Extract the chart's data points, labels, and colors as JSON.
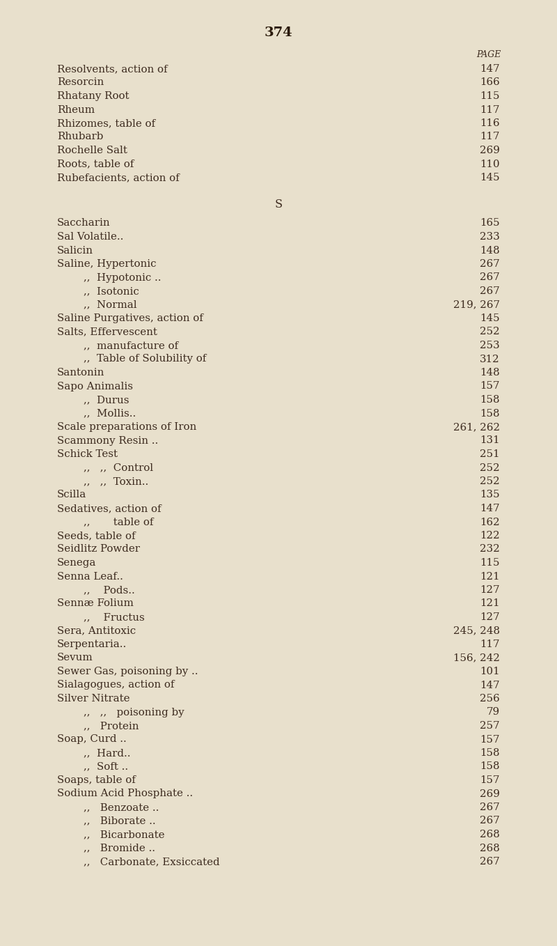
{
  "page_number": "374",
  "background_color": "#e8e0cc",
  "text_color": "#3d2b1f",
  "page_header_color": "#2a1a0a",
  "figsize": [
    8.0,
    13.58
  ],
  "dpi": 100,
  "entries": [
    {
      "indent": 0,
      "text": "Resolvents, action of",
      "page": "147"
    },
    {
      "indent": 0,
      "text": "Resorcin",
      "page": "166"
    },
    {
      "indent": 0,
      "text": "Rhatany Root",
      "page": "115"
    },
    {
      "indent": 0,
      "text": "Rheum",
      "page": "117"
    },
    {
      "indent": 0,
      "text": "Rhizomes, table of",
      "page": "116"
    },
    {
      "indent": 0,
      "text": "Rhubarb",
      "page": "117"
    },
    {
      "indent": 0,
      "text": "Rochelle Salt",
      "page": "269"
    },
    {
      "indent": 0,
      "text": "Roots, table of",
      "page": "110"
    },
    {
      "indent": 0,
      "text": "Rubefacients, action of",
      "page": "145"
    },
    {
      "indent": -1,
      "text": "S",
      "page": ""
    },
    {
      "indent": 0,
      "text": "Saccharin",
      "page": "165"
    },
    {
      "indent": 0,
      "text": "Sal Volatile..",
      "page": "233"
    },
    {
      "indent": 0,
      "text": "Salicin",
      "page": "148"
    },
    {
      "indent": 0,
      "text": "Saline, Hypertonic",
      "page": "267"
    },
    {
      "indent": 1,
      "text": ",,  Hypotonic ..",
      "page": "267"
    },
    {
      "indent": 1,
      "text": ",,  Isotonic",
      "page": "267"
    },
    {
      "indent": 1,
      "text": ",,  Normal",
      "page": "219, 267"
    },
    {
      "indent": 0,
      "text": "Saline Purgatives, action of",
      "page": "145"
    },
    {
      "indent": 0,
      "text": "Salts, Effervescent",
      "page": "252"
    },
    {
      "indent": 1,
      "text": ",,  manufacture of",
      "page": "253"
    },
    {
      "indent": 1,
      "text": ",,  Table of Solubility of",
      "page": "312"
    },
    {
      "indent": 0,
      "text": "Santonin",
      "page": "148"
    },
    {
      "indent": 0,
      "text": "Sapo Animalis",
      "page": "157"
    },
    {
      "indent": 1,
      "text": ",,  Durus",
      "page": "158"
    },
    {
      "indent": 1,
      "text": ",,  Mollis..",
      "page": "158"
    },
    {
      "indent": 0,
      "text": "Scale preparations of Iron",
      "page": "261, 262"
    },
    {
      "indent": 0,
      "text": "Scammony Resin ..",
      "page": "131"
    },
    {
      "indent": 0,
      "text": "Schick Test",
      "page": "251"
    },
    {
      "indent": 1,
      "text": ",,   ,,  Control",
      "page": "252"
    },
    {
      "indent": 1,
      "text": ",,   ,,  Toxin..",
      "page": "252"
    },
    {
      "indent": 0,
      "text": "Scilla",
      "page": "135"
    },
    {
      "indent": 0,
      "text": "Sedatives, action of",
      "page": "147"
    },
    {
      "indent": 1,
      "text": ",,       table of",
      "page": "162"
    },
    {
      "indent": 0,
      "text": "Seeds, table of",
      "page": "122"
    },
    {
      "indent": 0,
      "text": "Seidlitz Powder",
      "page": "232"
    },
    {
      "indent": 0,
      "text": "Senega",
      "page": "115"
    },
    {
      "indent": 0,
      "text": "Senna Leaf..",
      "page": "121"
    },
    {
      "indent": 1,
      "text": ",,    Pods..",
      "page": "127"
    },
    {
      "indent": 0,
      "text": "Sennæ Folium",
      "page": "121"
    },
    {
      "indent": 1,
      "text": ",,    Fructus",
      "page": "127"
    },
    {
      "indent": 0,
      "text": "Sera, Antitoxic",
      "page": "245, 248"
    },
    {
      "indent": 0,
      "text": "Serpentaria..",
      "page": "117"
    },
    {
      "indent": 0,
      "text": "Sevum",
      "page": "156, 242"
    },
    {
      "indent": 0,
      "text": "Sewer Gas, poisoning by ..",
      "page": "101"
    },
    {
      "indent": 0,
      "text": "Sialagogues, action of",
      "page": "147"
    },
    {
      "indent": 0,
      "text": "Silver Nitrate",
      "page": "256"
    },
    {
      "indent": 1,
      "text": ",,   ,,   poisoning by",
      "page": "79"
    },
    {
      "indent": 1,
      "text": ",,   Protein",
      "page": "257"
    },
    {
      "indent": 0,
      "text": "Soap, Curd ..",
      "page": "157"
    },
    {
      "indent": 1,
      "text": ",,  Hard..",
      "page": "158"
    },
    {
      "indent": 1,
      "text": ",,  Soft ..",
      "page": "158"
    },
    {
      "indent": 0,
      "text": "Soaps, table of",
      "page": "157"
    },
    {
      "indent": 0,
      "text": "Sodium Acid Phosphate ..",
      "page": "269"
    },
    {
      "indent": 1,
      "text": ",,   Benzoate ..",
      "page": "267"
    },
    {
      "indent": 1,
      "text": ",,   Biborate ..",
      "page": "267"
    },
    {
      "indent": 1,
      "text": ",,   Bicarbonate",
      "page": "268"
    },
    {
      "indent": 1,
      "text": ",,   Bromide ..",
      "page": "268"
    },
    {
      "indent": 1,
      "text": ",,   Carbonate, Exsiccated",
      "page": "267"
    }
  ]
}
